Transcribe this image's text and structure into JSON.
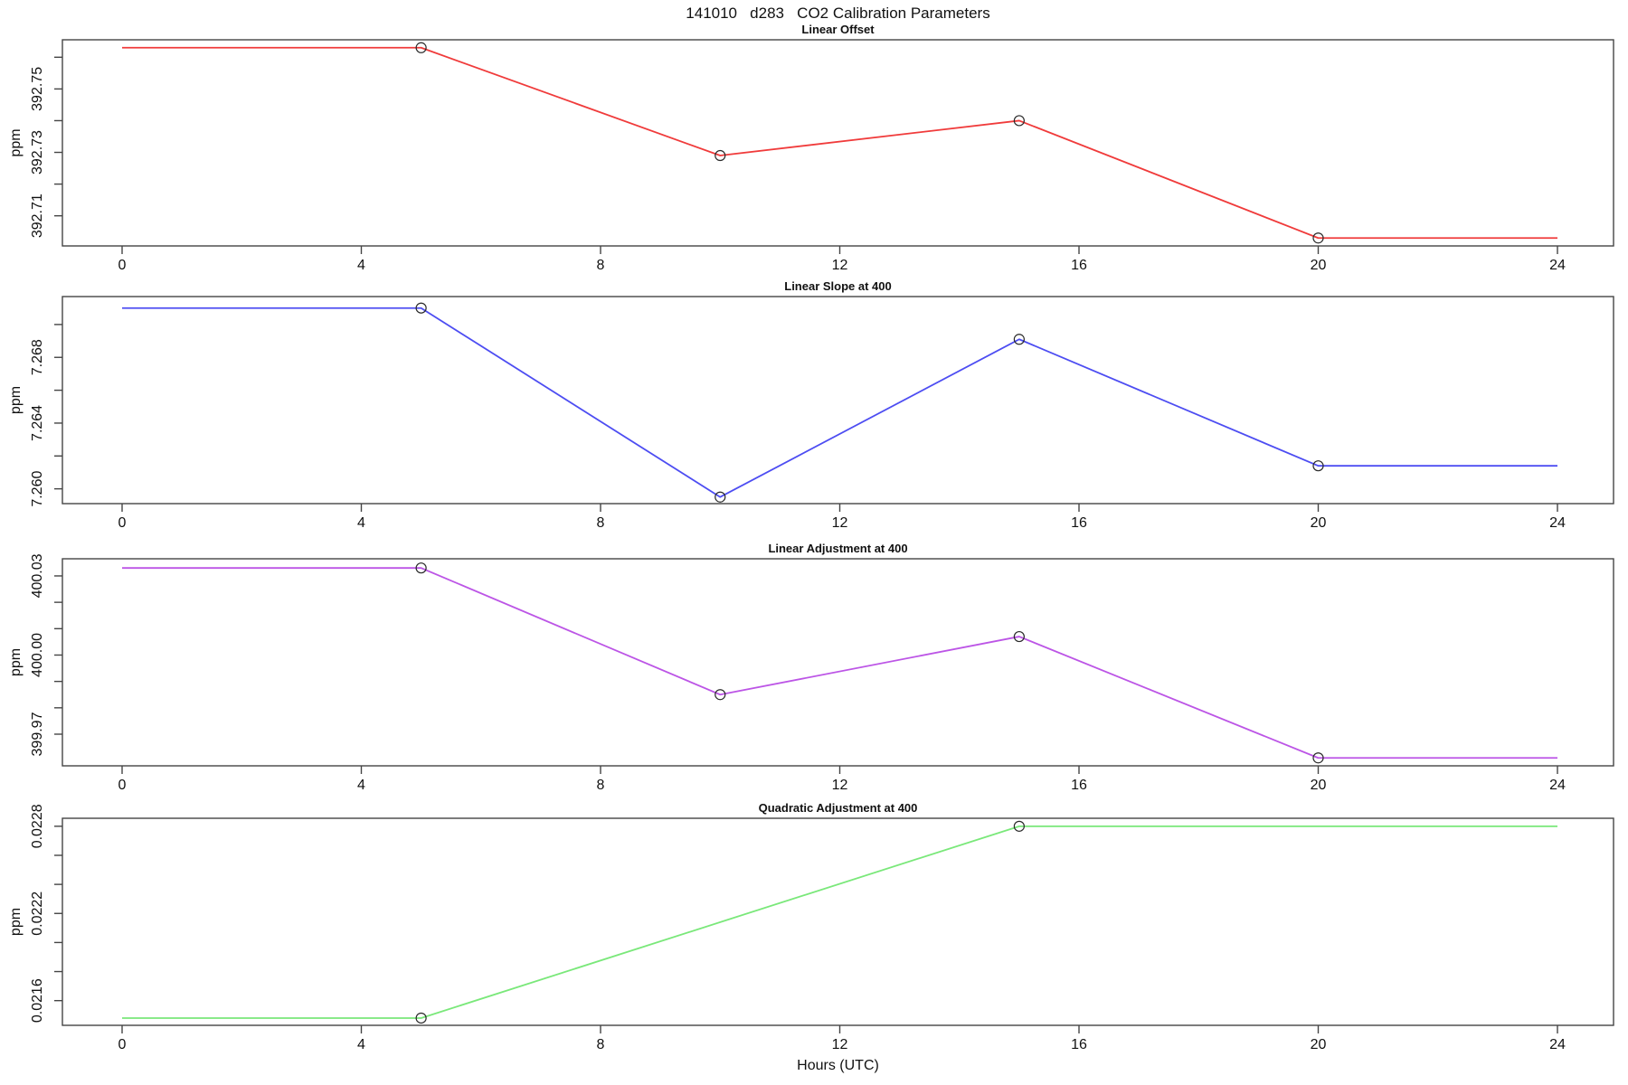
{
  "figure": {
    "title": "141010   d283   CO2 Calibration Parameters",
    "xlabel": "Hours (UTC)",
    "background": "#ffffff",
    "axis_color": "#454545",
    "text_color": "#111111"
  },
  "chart_data": [
    {
      "type": "line",
      "title": "Linear Offset",
      "ylabel": "ppm",
      "color": "#f03b3b",
      "marker": "open-circle",
      "x": [
        0,
        5,
        10,
        15,
        20,
        24
      ],
      "y": [
        392.763,
        392.763,
        392.729,
        392.74,
        392.703,
        392.703
      ],
      "points": {
        "x": [
          5,
          10,
          15,
          20
        ],
        "y": [
          392.763,
          392.729,
          392.74,
          392.703
        ]
      },
      "xlim": [
        0,
        24
      ],
      "ylim": [
        392.7005,
        392.7655
      ],
      "xticks": [
        0,
        4,
        8,
        12,
        16,
        20,
        24
      ],
      "xtick_labels": [
        "0",
        "4",
        "8",
        "12",
        "16",
        "20",
        "24"
      ],
      "yticks": [
        392.71,
        392.72,
        392.73,
        392.74,
        392.75,
        392.76
      ],
      "ytick_labels": [
        "392.71",
        "",
        "392.73",
        "",
        "392.75",
        ""
      ],
      "grid": false
    },
    {
      "type": "line",
      "title": "Linear Slope at 400",
      "ylabel": "ppm",
      "color": "#4d4df2",
      "marker": "open-circle",
      "x": [
        0,
        5,
        10,
        15,
        20,
        24
      ],
      "y": [
        7.271,
        7.271,
        7.2595,
        7.2691,
        7.2614,
        7.2614
      ],
      "points": {
        "x": [
          5,
          10,
          15,
          20
        ],
        "y": [
          7.271,
          7.2595,
          7.2691,
          7.2614
        ]
      },
      "xlim": [
        0,
        24
      ],
      "ylim": [
        7.2591,
        7.2717
      ],
      "xticks": [
        0,
        4,
        8,
        12,
        16,
        20,
        24
      ],
      "xtick_labels": [
        "0",
        "4",
        "8",
        "12",
        "16",
        "20",
        "24"
      ],
      "yticks": [
        7.26,
        7.262,
        7.264,
        7.266,
        7.268,
        7.27
      ],
      "ytick_labels": [
        "7.260",
        "",
        "7.264",
        "",
        "7.268",
        ""
      ],
      "grid": false
    },
    {
      "type": "line",
      "title": "Linear Adjustment at 400",
      "ylabel": "ppm",
      "color": "#bc55e6",
      "marker": "open-circle",
      "x": [
        0,
        5,
        10,
        15,
        20,
        24
      ],
      "y": [
        400.033,
        400.033,
        399.985,
        400.007,
        399.961,
        399.961
      ],
      "points": {
        "x": [
          5,
          10,
          15,
          20
        ],
        "y": [
          400.033,
          399.985,
          400.007,
          399.961
        ]
      },
      "xlim": [
        0,
        24
      ],
      "ylim": [
        399.958,
        400.0365
      ],
      "xticks": [
        0,
        4,
        8,
        12,
        16,
        20,
        24
      ],
      "xtick_labels": [
        "0",
        "4",
        "8",
        "12",
        "16",
        "20",
        "24"
      ],
      "yticks": [
        399.97,
        399.98,
        399.99,
        400.0,
        400.01,
        400.02,
        400.03
      ],
      "ytick_labels": [
        "399.97",
        "",
        "",
        "400.00",
        "",
        "",
        "400.03"
      ],
      "grid": false
    },
    {
      "type": "line",
      "title": "Quadratic Adjustment at 400",
      "ylabel": "ppm",
      "color": "#7ae87a",
      "marker": "open-circle",
      "x": [
        0,
        5,
        15,
        24
      ],
      "y": [
        0.02148,
        0.02148,
        0.0228,
        0.0228
      ],
      "points": {
        "x": [
          5,
          15
        ],
        "y": [
          0.02148,
          0.0228
        ]
      },
      "xlim": [
        0,
        24
      ],
      "ylim": [
        0.02143,
        0.022855
      ],
      "xticks": [
        0,
        4,
        8,
        12,
        16,
        20,
        24
      ],
      "xtick_labels": [
        "0",
        "4",
        "8",
        "12",
        "16",
        "20",
        "24"
      ],
      "yticks": [
        0.0216,
        0.0218,
        0.022,
        0.0222,
        0.0224,
        0.0226,
        0.0228
      ],
      "ytick_labels": [
        "0.0216",
        "",
        "",
        "0.0222",
        "",
        "",
        "0.0228"
      ],
      "grid": false
    }
  ]
}
